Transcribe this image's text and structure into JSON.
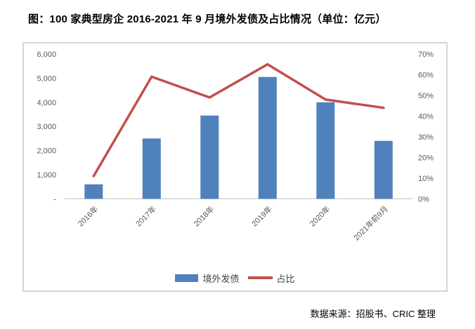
{
  "page": {
    "title": "图：100 家典型房企 2016-2021 年 9 月境外发债及占比情况（单位：亿元）",
    "source_note": "数据来源：招股书、CRIC 整理"
  },
  "legend": [
    {
      "label": "境外发债",
      "swatch": "bar"
    },
    {
      "label": "占比",
      "swatch": "line"
    }
  ],
  "colors": {
    "bar": "#4F81BD",
    "line": "#C0504D",
    "axis_text": "#595959",
    "axis_line": "#D3D3D3",
    "chart_border": "#D6D6D6",
    "title_text": "#000000"
  },
  "chart_data": {
    "type": "bar+line",
    "title": "图：100 家典型房企 2016-2021 年 9 月境外发债及占比情况（单位：亿元）",
    "categories": [
      "2016年",
      "2017年",
      "2018年",
      "2019年",
      "2020年",
      "2021年前9月"
    ],
    "series": [
      {
        "name": "境外发债",
        "type": "bar",
        "axis": "left",
        "unit": "亿元",
        "values": [
          600,
          2500,
          3450,
          5050,
          4000,
          2400
        ]
      },
      {
        "name": "占比",
        "type": "line",
        "axis": "right",
        "unit": "%",
        "values": [
          11,
          59,
          49,
          65,
          48,
          44
        ]
      }
    ],
    "left_axis": {
      "min": 0,
      "max": 6000,
      "step": 1000,
      "tick_labels": [
        "-",
        "1,000",
        "2,000",
        "3,000",
        "4,000",
        "5,000",
        "6,000"
      ]
    },
    "right_axis": {
      "min": 0,
      "max": 70,
      "step": 10,
      "tick_labels": [
        "0%",
        "10%",
        "20%",
        "30%",
        "40%",
        "50%",
        "60%",
        "70%"
      ]
    },
    "grid": false,
    "legend_position": "bottom"
  }
}
